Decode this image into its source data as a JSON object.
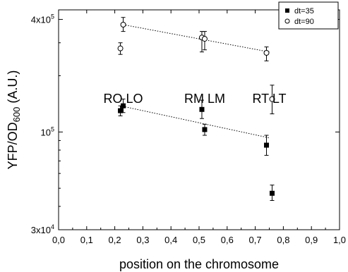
{
  "chart_data": {
    "type": "scatter",
    "title": "",
    "xlabel": "position on the chromosome",
    "ylabel": {
      "main": "YFP/OD",
      "sub": "600",
      "suffix": " (A.U.)"
    },
    "x_axis": {
      "range": [
        0.0,
        1.0
      ],
      "ticks": [
        "0,0",
        "0,1",
        "0,2",
        "0,3",
        "0,4",
        "0,5",
        "0,6",
        "0,7",
        "0,8",
        "0,9",
        "1,0"
      ]
    },
    "y_axis": {
      "scale": "log",
      "range": [
        30000,
        450000
      ],
      "ticks": [
        {
          "value": 30000,
          "base": "3x10",
          "exp": "4"
        },
        {
          "value": 100000,
          "base": "10",
          "exp": "5"
        },
        {
          "value": 400000,
          "base": "4x10",
          "exp": "5"
        }
      ]
    },
    "legend": {
      "position": "top-right",
      "entries": [
        {
          "label": "dt=35",
          "marker": "filled-square"
        },
        {
          "label": "dt=90",
          "marker": "open-circle"
        }
      ]
    },
    "region_labels": [
      {
        "text": "RO LO",
        "x": 0.23
      },
      {
        "text": "RM LM",
        "x": 0.52
      },
      {
        "text": "RT LT",
        "x": 0.75
      }
    ],
    "series": [
      {
        "name": "dt=35",
        "marker": "filled-square",
        "points": [
          {
            "x": 0.22,
            "y": 130000,
            "err": [
              122000,
              138000
            ]
          },
          {
            "x": 0.23,
            "y": 138000,
            "err": [
              127000,
              150000
            ]
          },
          {
            "x": 0.51,
            "y": 132000,
            "err": [
              118000,
              148000
            ]
          },
          {
            "x": 0.52,
            "y": 103000,
            "err": [
              96000,
              110000
            ]
          },
          {
            "x": 0.74,
            "y": 85000,
            "err": [
              75000,
              96000
            ]
          },
          {
            "x": 0.76,
            "y": 47000,
            "err": [
              43000,
              52000
            ]
          }
        ],
        "trend": {
          "x": [
            0.22,
            0.75
          ],
          "y": [
            138000,
            93000
          ]
        }
      },
      {
        "name": "dt=90",
        "marker": "open-circle",
        "points": [
          {
            "x": 0.22,
            "y": 280000,
            "err": [
              260000,
              300000
            ]
          },
          {
            "x": 0.23,
            "y": 375000,
            "err": [
              345000,
              410000
            ]
          },
          {
            "x": 0.51,
            "y": 320000,
            "err": [
              268000,
              345000
            ]
          },
          {
            "x": 0.52,
            "y": 315000,
            "err": [
              275000,
              345000
            ]
          },
          {
            "x": 0.74,
            "y": 265000,
            "err": [
              240000,
              285000
            ]
          },
          {
            "x": 0.76,
            "y": 150000,
            "err": [
              125000,
              178000
            ]
          }
        ],
        "trend": {
          "x": [
            0.23,
            0.75
          ],
          "y": [
            375000,
            268000
          ]
        }
      }
    ]
  }
}
